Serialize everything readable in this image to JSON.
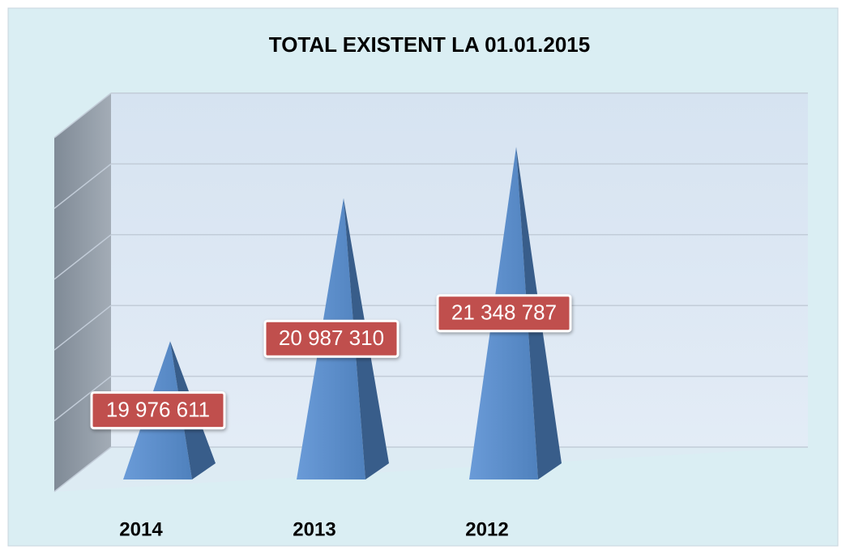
{
  "chart_data": {
    "type": "pyramid",
    "title": "TOTAL   EXISTENT  LA 01.01.2015",
    "categories": [
      "2014",
      "2013",
      "2012"
    ],
    "values": [
      19976611,
      20987310,
      21348787
    ],
    "value_labels": [
      "19 976 611",
      "20 987 310",
      "21 348 787"
    ],
    "color": "#4f81bd",
    "ylim": [
      19000000,
      21500000
    ],
    "yticks": [
      19000000,
      19500000,
      20000000,
      20500000,
      21000000,
      21500000
    ],
    "grid": true
  }
}
